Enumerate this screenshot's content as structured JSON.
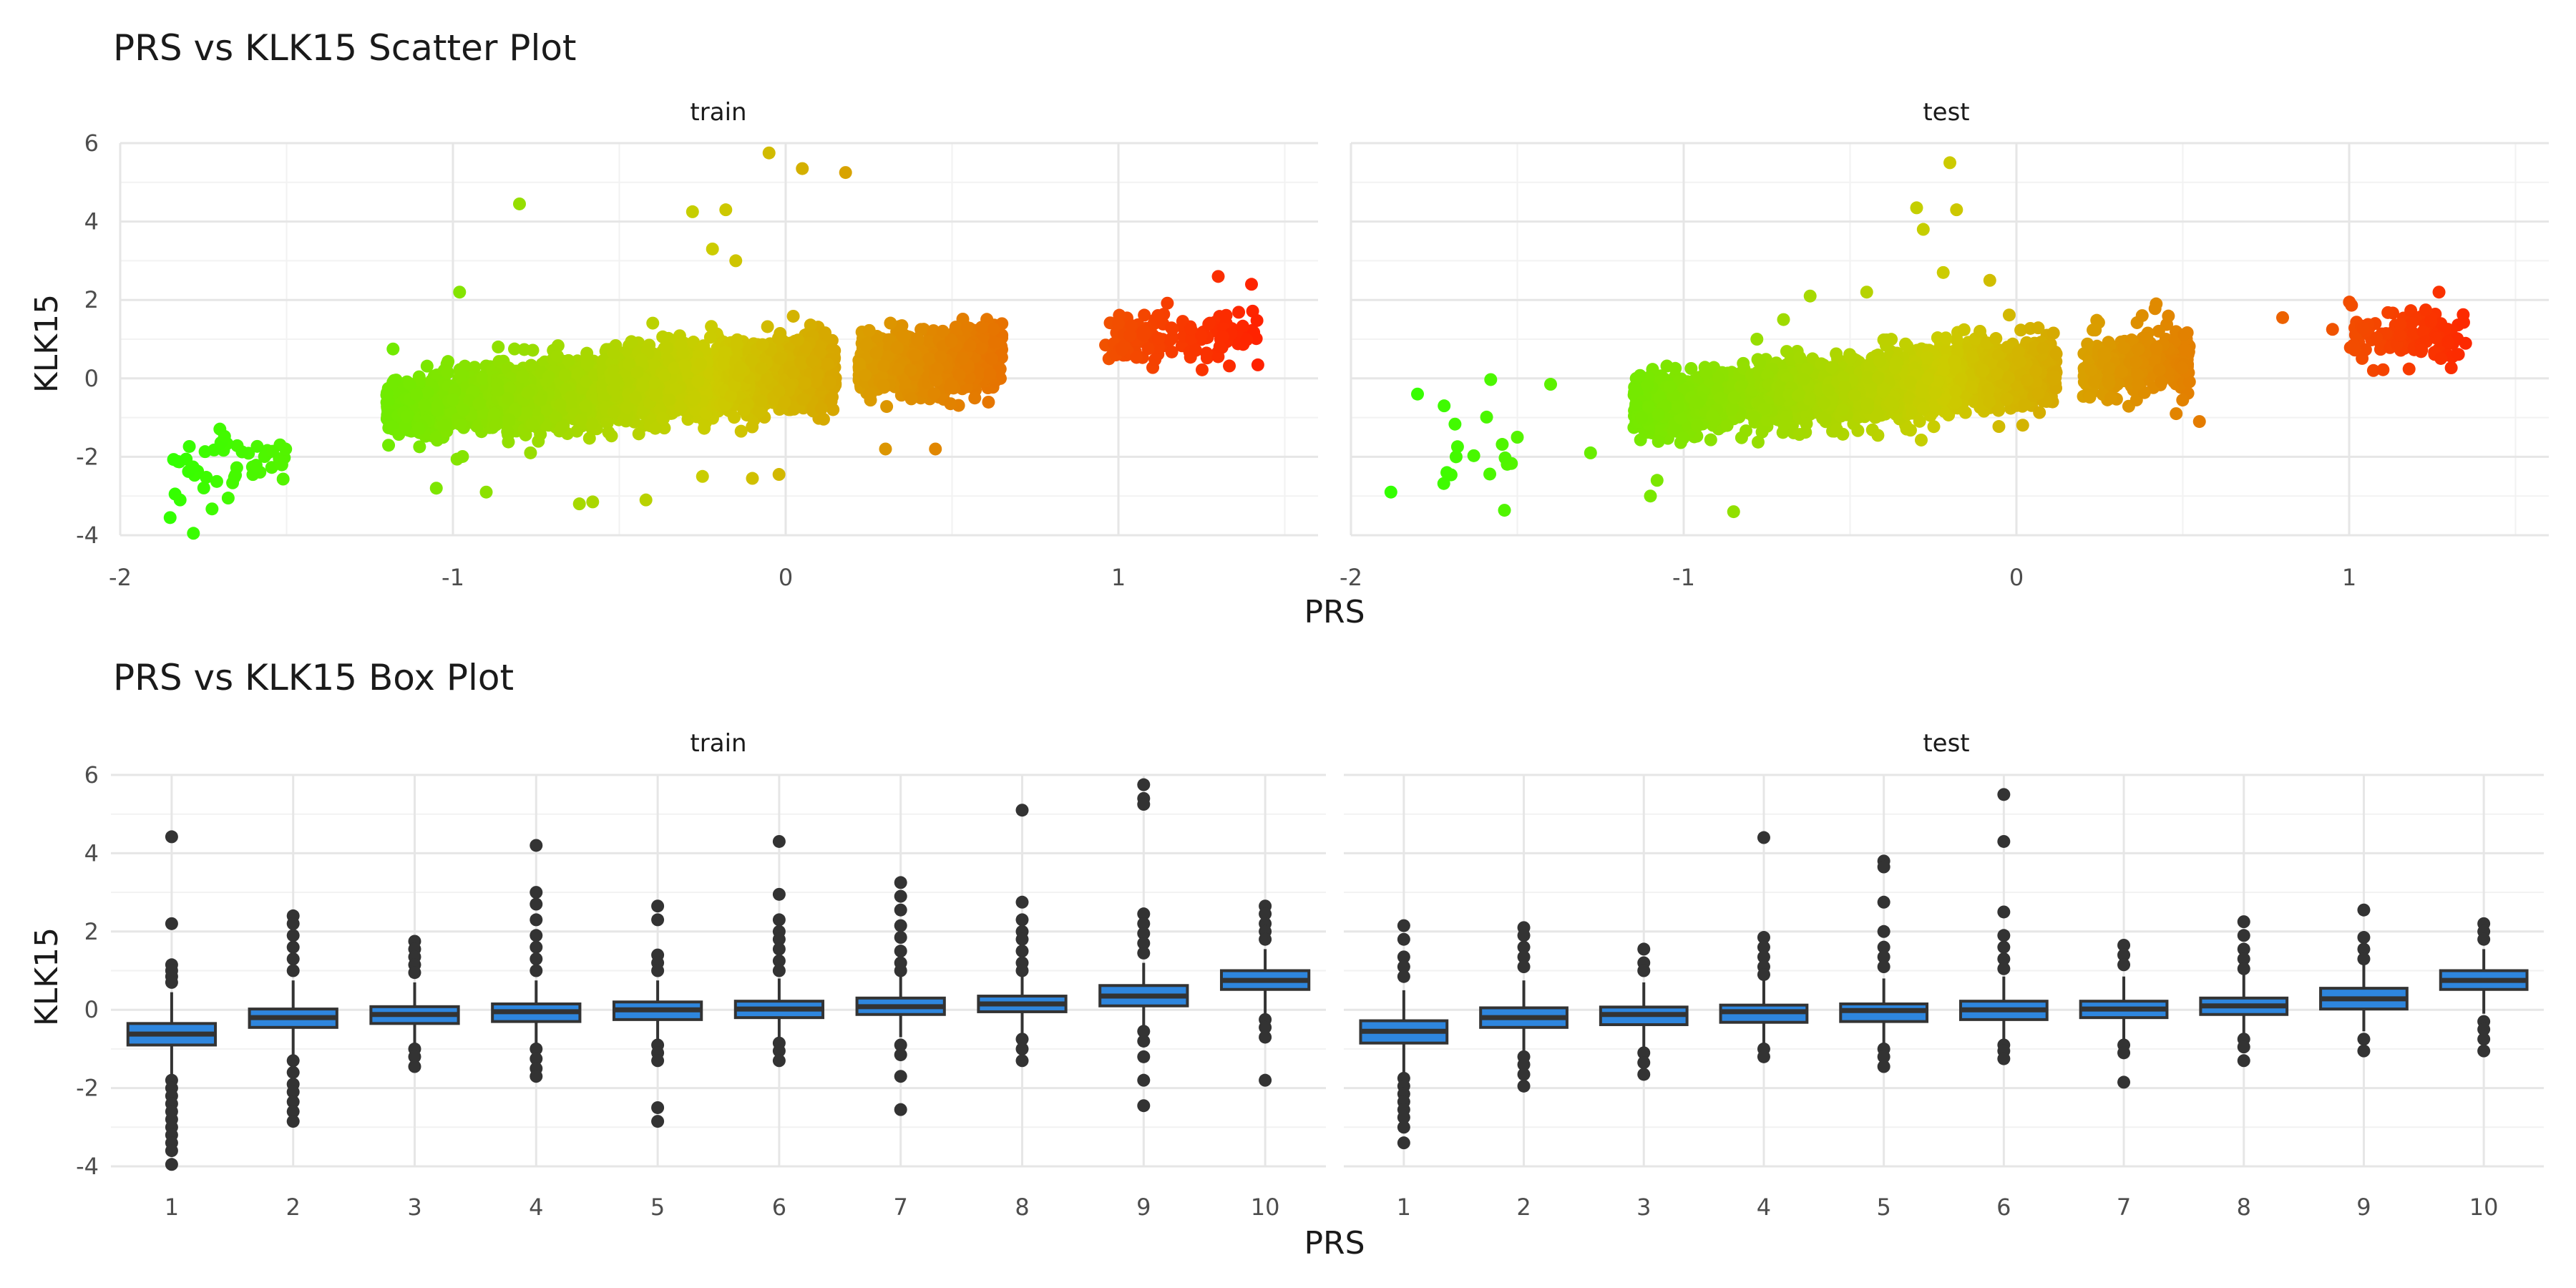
{
  "chart_data": [
    {
      "type": "scatter",
      "title": "PRS vs KLK15 Scatter Plot",
      "xlabel": "PRS",
      "ylabel": "KLK15",
      "facets": [
        "train",
        "test"
      ],
      "xlim": [
        -2,
        1.6
      ],
      "ylim": [
        -4,
        6
      ],
      "xticks": [
        "-2",
        "-1",
        "0",
        "1"
      ],
      "yticks": [
        "-4",
        "-2",
        "0",
        "2",
        "4",
        "6"
      ],
      "color_scale": {
        "low": "#33ff00",
        "mid": "#cccc00",
        "high": "#ff2200"
      },
      "grid": true,
      "panels": {
        "train": {
          "trend": {
            "slope": 0.72,
            "intercept": 0.12
          },
          "bulk": [
            [
              -1.2,
              -0.88,
              700,
              0.35
            ],
            [
              -0.88,
              -0.55,
              1000,
              0.38
            ],
            [
              -0.55,
              -0.2,
              1300,
              0.42
            ],
            [
              -0.2,
              0.15,
              1200,
              0.4
            ],
            [
              0.22,
              0.65,
              1100,
              0.36
            ],
            [
              0.96,
              1.42,
              130,
              0.32
            ],
            [
              -1.84,
              -1.5,
              45,
              0.45
            ]
          ],
          "points": [
            [
              -0.8,
              4.45
            ],
            [
              -0.28,
              4.25
            ],
            [
              -0.18,
              4.3
            ],
            [
              -0.05,
              5.75
            ],
            [
              0.05,
              5.35
            ],
            [
              0.18,
              5.25
            ],
            [
              -0.22,
              3.3
            ],
            [
              -0.15,
              3.0
            ],
            [
              -1.85,
              -3.55
            ],
            [
              -1.78,
              -3.95
            ],
            [
              -1.82,
              -3.1
            ],
            [
              -0.62,
              -3.2
            ],
            [
              -0.58,
              -3.15
            ],
            [
              -0.42,
              -3.1
            ],
            [
              0.3,
              -1.8
            ],
            [
              0.45,
              -1.8
            ],
            [
              -0.02,
              -2.45
            ],
            [
              -0.1,
              -2.55
            ],
            [
              -0.98,
              2.2
            ],
            [
              -1.18,
              0.75
            ],
            [
              -0.9,
              -2.9
            ],
            [
              -1.05,
              -2.8
            ],
            [
              -0.25,
              -2.5
            ],
            [
              1.0,
              1.4
            ],
            [
              1.4,
              2.4
            ],
            [
              1.3,
              2.6
            ]
          ]
        },
        "test": {
          "trend": {
            "slope": 0.72,
            "intercept": 0.12
          },
          "bulk": [
            [
              -1.15,
              -0.8,
              550,
              0.35
            ],
            [
              -0.8,
              -0.45,
              700,
              0.38
            ],
            [
              -0.45,
              -0.1,
              900,
              0.42
            ],
            [
              -0.1,
              0.12,
              500,
              0.4
            ],
            [
              0.2,
              0.52,
              450,
              0.36
            ],
            [
              1.0,
              1.35,
              110,
              0.32
            ],
            [
              -1.75,
              -1.5,
              14,
              0.45
            ]
          ],
          "points": [
            [
              -1.88,
              -2.9
            ],
            [
              -1.8,
              -0.4
            ],
            [
              -1.72,
              -0.7
            ],
            [
              -0.2,
              5.5
            ],
            [
              -0.3,
              4.35
            ],
            [
              -0.18,
              4.3
            ],
            [
              -0.28,
              3.8
            ],
            [
              -0.85,
              -3.4
            ],
            [
              -1.1,
              -3.0
            ],
            [
              -1.08,
              -2.6
            ],
            [
              -1.28,
              -1.9
            ],
            [
              -0.22,
              2.7
            ],
            [
              -0.08,
              2.5
            ],
            [
              -0.62,
              2.1
            ],
            [
              -0.45,
              2.2
            ],
            [
              -0.78,
              1.0
            ],
            [
              -0.7,
              1.5
            ],
            [
              -1.4,
              -0.15
            ],
            [
              -1.58,
              -0.03
            ],
            [
              -1.5,
              -1.5
            ],
            [
              0.42,
              1.9
            ],
            [
              0.55,
              -1.1
            ],
            [
              0.48,
              -0.9
            ],
            [
              0.8,
              1.55
            ],
            [
              0.95,
              1.25
            ],
            [
              1.27,
              2.2
            ]
          ]
        }
      }
    },
    {
      "type": "box",
      "title": "PRS vs KLK15 Box Plot",
      "xlabel": "PRS",
      "ylabel": "KLK15",
      "facets": [
        "train",
        "test"
      ],
      "categories": [
        "1",
        "2",
        "3",
        "4",
        "5",
        "6",
        "7",
        "8",
        "9",
        "10"
      ],
      "ylim": [
        -4,
        6
      ],
      "yticks": [
        "-4",
        "-2",
        "0",
        "2",
        "4",
        "6"
      ],
      "box_fill": "#2e86de",
      "grid": true,
      "panels": {
        "train": {
          "boxes": [
            {
              "q1": -0.9,
              "median": -0.62,
              "q3": -0.35,
              "low": -1.75,
              "high": 0.45,
              "outliers": [
                4.42,
                2.2,
                1.15,
                1.0,
                0.85,
                0.7,
                -1.8,
                -2.0,
                -2.2,
                -2.4,
                -2.6,
                -2.8,
                -3.0,
                -3.2,
                -3.4,
                -3.6,
                -3.95
              ]
            },
            {
              "q1": -0.45,
              "median": -0.2,
              "q3": 0.02,
              "low": -1.15,
              "high": 0.75,
              "outliers": [
                2.4,
                2.2,
                1.9,
                1.6,
                1.3,
                1.0,
                -1.3,
                -1.6,
                -1.9,
                -2.1,
                -2.35,
                -2.6,
                -2.85
              ]
            },
            {
              "q1": -0.35,
              "median": -0.12,
              "q3": 0.08,
              "low": -0.9,
              "high": 0.7,
              "outliers": [
                1.75,
                1.55,
                1.35,
                1.15,
                0.95,
                -1.0,
                -1.2,
                -1.45
              ]
            },
            {
              "q1": -0.3,
              "median": -0.05,
              "q3": 0.15,
              "low": -0.85,
              "high": 0.75,
              "outliers": [
                4.2,
                3.0,
                2.7,
                2.3,
                1.9,
                1.6,
                1.3,
                1.0,
                -1.0,
                -1.25,
                -1.5,
                -1.7
              ]
            },
            {
              "q1": -0.25,
              "median": 0.0,
              "q3": 0.2,
              "low": -0.75,
              "high": 0.75,
              "outliers": [
                2.65,
                2.3,
                1.4,
                1.2,
                1.0,
                -0.9,
                -1.1,
                -1.3,
                -2.5,
                -2.85
              ]
            },
            {
              "q1": -0.2,
              "median": 0.02,
              "q3": 0.22,
              "low": -0.75,
              "high": 0.8,
              "outliers": [
                4.3,
                2.95,
                2.3,
                2.0,
                1.8,
                1.55,
                1.25,
                1.0,
                -0.85,
                -1.05,
                -1.3
              ]
            },
            {
              "q1": -0.12,
              "median": 0.08,
              "q3": 0.3,
              "low": -0.7,
              "high": 0.85,
              "outliers": [
                3.25,
                2.9,
                2.55,
                2.15,
                1.85,
                1.5,
                1.2,
                1.0,
                -0.9,
                -1.15,
                -1.7,
                -2.55
              ]
            },
            {
              "q1": -0.05,
              "median": 0.15,
              "q3": 0.35,
              "low": -0.6,
              "high": 0.9,
              "outliers": [
                5.1,
                2.75,
                2.3,
                2.0,
                1.8,
                1.5,
                1.2,
                1.0,
                -0.75,
                -1.0,
                -1.3
              ]
            },
            {
              "q1": 0.1,
              "median": 0.35,
              "q3": 0.62,
              "low": -0.45,
              "high": 1.2,
              "outliers": [
                5.75,
                5.4,
                5.25,
                2.45,
                2.2,
                1.95,
                1.7,
                1.45,
                -0.55,
                -0.8,
                -1.2,
                -1.8,
                -2.45
              ]
            },
            {
              "q1": 0.52,
              "median": 0.75,
              "q3": 1.0,
              "low": -0.1,
              "high": 1.55,
              "outliers": [
                2.65,
                2.45,
                2.2,
                2.0,
                1.8,
                -0.25,
                -0.45,
                -0.7,
                -1.8
              ]
            }
          ]
        },
        "test": {
          "boxes": [
            {
              "q1": -0.85,
              "median": -0.55,
              "q3": -0.28,
              "low": -1.65,
              "high": 0.5,
              "outliers": [
                2.15,
                1.8,
                1.35,
                1.1,
                0.85,
                -1.75,
                -1.95,
                -2.15,
                -2.35,
                -2.55,
                -2.75,
                -3.0,
                -3.4
              ]
            },
            {
              "q1": -0.45,
              "median": -0.2,
              "q3": 0.05,
              "low": -1.1,
              "high": 0.75,
              "outliers": [
                2.1,
                1.9,
                1.6,
                1.35,
                1.1,
                -1.2,
                -1.4,
                -1.65,
                -1.95
              ]
            },
            {
              "q1": -0.38,
              "median": -0.12,
              "q3": 0.07,
              "low": -1.0,
              "high": 0.7,
              "outliers": [
                1.55,
                1.2,
                1.0,
                -1.1,
                -1.35,
                -1.65
              ]
            },
            {
              "q1": -0.32,
              "median": -0.05,
              "q3": 0.12,
              "low": -0.9,
              "high": 0.75,
              "outliers": [
                4.4,
                1.85,
                1.6,
                1.35,
                1.1,
                0.9,
                -1.0,
                -1.2
              ]
            },
            {
              "q1": -0.3,
              "median": -0.02,
              "q3": 0.15,
              "low": -0.85,
              "high": 0.8,
              "outliers": [
                3.8,
                3.65,
                2.75,
                2.0,
                1.6,
                1.35,
                1.1,
                -1.0,
                -1.2,
                -1.45
              ]
            },
            {
              "q1": -0.25,
              "median": 0.0,
              "q3": 0.22,
              "low": -0.85,
              "high": 0.85,
              "outliers": [
                5.5,
                4.3,
                2.5,
                1.9,
                1.6,
                1.3,
                1.05,
                -0.9,
                -1.05,
                -1.25
              ]
            },
            {
              "q1": -0.2,
              "median": 0.02,
              "q3": 0.22,
              "low": -0.8,
              "high": 0.85,
              "outliers": [
                1.65,
                1.4,
                1.15,
                -0.9,
                -1.1,
                -1.85
              ]
            },
            {
              "q1": -0.12,
              "median": 0.1,
              "q3": 0.3,
              "low": -0.7,
              "high": 0.9,
              "outliers": [
                2.25,
                1.9,
                1.55,
                1.3,
                1.05,
                -0.75,
                -0.95,
                -1.3
              ]
            },
            {
              "q1": 0.02,
              "median": 0.28,
              "q3": 0.55,
              "low": -0.55,
              "high": 1.2,
              "outliers": [
                2.55,
                1.85,
                1.55,
                1.3,
                -0.75,
                -1.05
              ]
            },
            {
              "q1": 0.52,
              "median": 0.75,
              "q3": 1.0,
              "low": -0.1,
              "high": 1.55,
              "outliers": [
                2.2,
                2.0,
                1.8,
                -0.3,
                -0.5,
                -0.75,
                -1.05
              ]
            }
          ]
        }
      }
    }
  ]
}
